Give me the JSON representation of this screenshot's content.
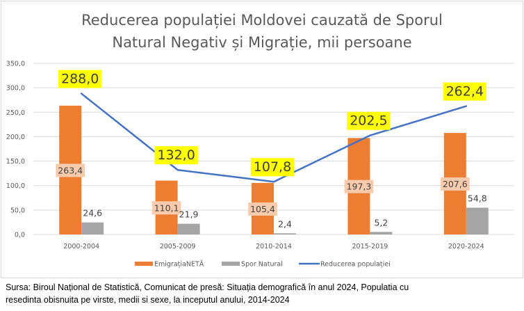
{
  "chart_data": {
    "type": "bar",
    "title": [
      "Reducerea populației Moldovei cauzată de Sporul",
      "Natural Negativ și Migrație, mii persoane"
    ],
    "xlabel": "",
    "ylabel": "",
    "ylim": [
      0,
      350
    ],
    "yticks": [
      0,
      50,
      100,
      150,
      200,
      250,
      300,
      350
    ],
    "ytick_labels": [
      "0,0",
      "50,0",
      "100,0",
      "150,0",
      "200,0",
      "250,0",
      "300,0",
      "350,0"
    ],
    "grid": true,
    "categories": [
      "2000-2004",
      "2005-2009",
      "2010-2014",
      "2015-2019",
      "2020-2024"
    ],
    "series": [
      {
        "name": "EmigrațiaNETĂ",
        "kind": "bar",
        "color": "#ed7d31",
        "label_bg": "#f8cbad",
        "values": [
          263.4,
          110.1,
          105.4,
          197.3,
          207.6
        ],
        "labels": [
          "263,4",
          "110,1",
          "105,4",
          "197,3",
          "207,6"
        ]
      },
      {
        "name": "Spor Natural",
        "kind": "bar",
        "color": "#a5a5a5",
        "values": [
          24.6,
          21.9,
          2.4,
          5.2,
          54.8
        ],
        "labels": [
          "24,6",
          "21,9",
          "2,4",
          "5,2",
          "54,8"
        ]
      },
      {
        "name": "Reducerea populației",
        "kind": "line",
        "color": "#4472c4",
        "label_bg": "#ffff00",
        "values": [
          288.0,
          132.0,
          107.8,
          202.5,
          262.4
        ],
        "labels": [
          "288,0",
          "132,0",
          "107,8",
          "202,5",
          "262,4"
        ]
      }
    ],
    "legend": {
      "placement": "bottom",
      "entries": [
        "EmigrațiaNETĂ",
        "Spor Natural",
        "Reducerea populației"
      ]
    }
  },
  "source": {
    "line1": "Sursa: Biroul Național de Statistică, Comunicat de presă: Situația demografică în anul 2024,  Populatia cu",
    "line2": "resedinta obisnuita pe virste, medii si sexe, la inceputul anului, 2014-2024"
  }
}
